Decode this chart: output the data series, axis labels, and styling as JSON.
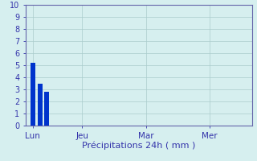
{
  "bar_positions": [
    0.5,
    1.0,
    1.5
  ],
  "bar_values": [
    5.2,
    3.5,
    2.8
  ],
  "bar_color": "#0033CC",
  "bar_width": 0.35,
  "xlabel": "Précipitations 24h ( mm )",
  "xlabel_color": "#3333AA",
  "xlabel_fontsize": 8,
  "ylim": [
    0,
    10
  ],
  "yticks": [
    0,
    1,
    2,
    3,
    4,
    5,
    6,
    7,
    8,
    9,
    10
  ],
  "xtick_positions": [
    0.5,
    4.0,
    8.5,
    13.0
  ],
  "xtick_labels": [
    "Lun",
    "Jeu",
    "Mar",
    "Mer"
  ],
  "xlim": [
    0,
    16
  ],
  "background_color": "#D6EFEF",
  "grid_color": "#AACCCC",
  "axis_color": "#6666AA",
  "tick_color": "#3333AA",
  "ytick_fontsize": 7,
  "xtick_fontsize": 7.5,
  "figsize": [
    3.2,
    2.0
  ],
  "dpi": 100
}
